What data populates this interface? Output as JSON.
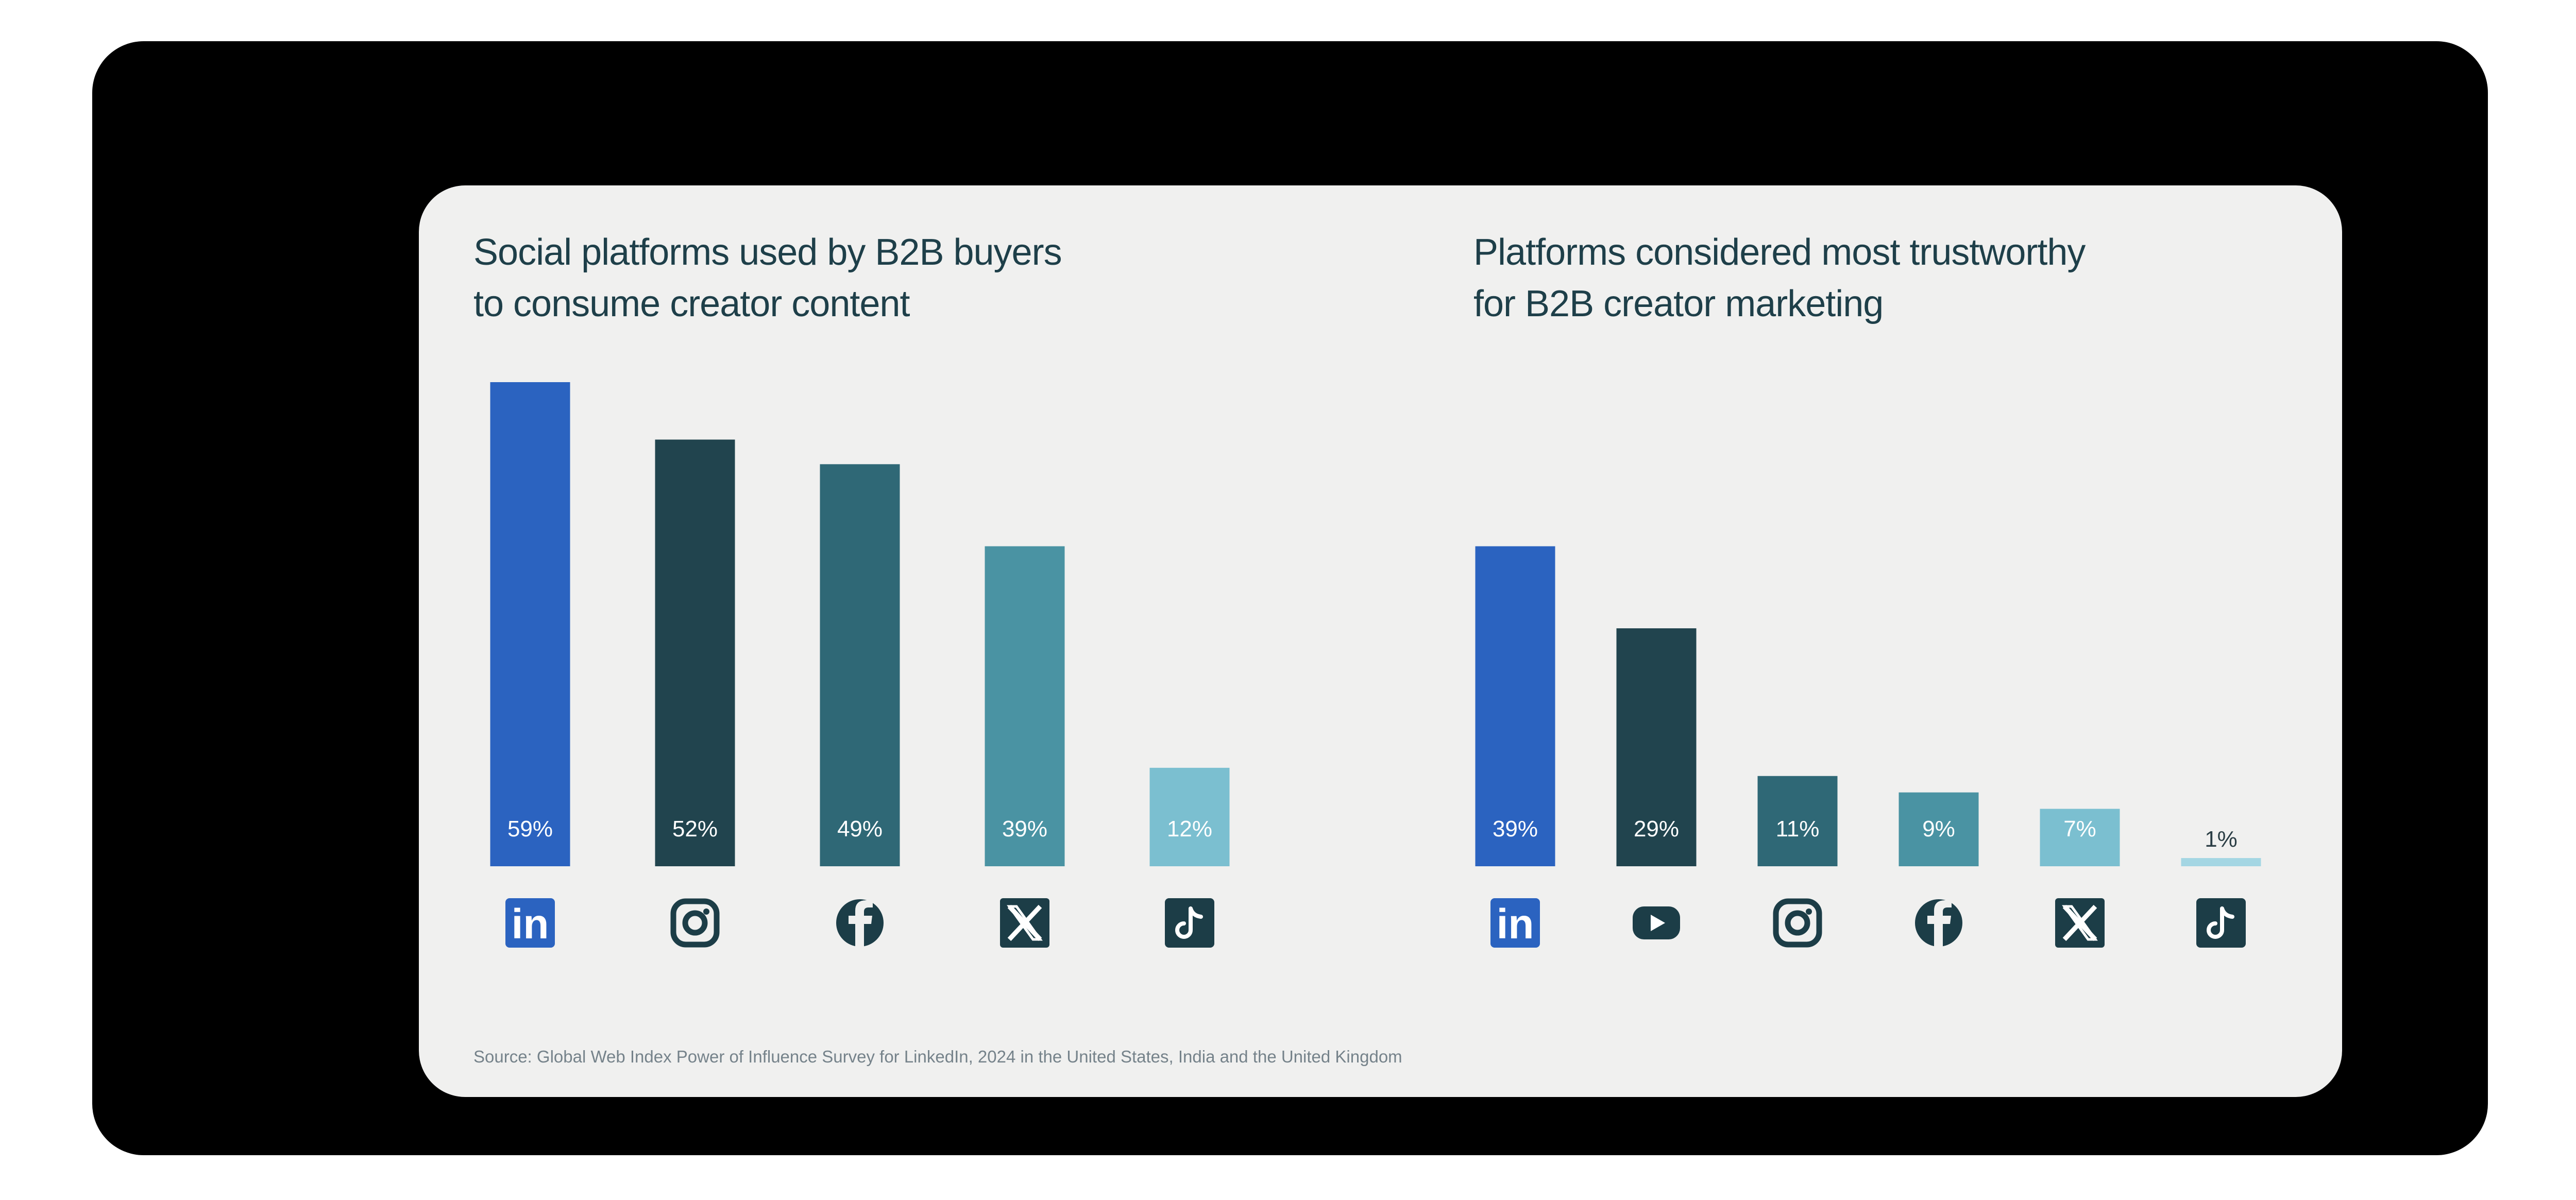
{
  "chart_data": [
    {
      "type": "bar",
      "title_lines": [
        "Social platforms used by B2B buyers",
        "to consume creator content"
      ],
      "categories": [
        "LinkedIn",
        "Instagram",
        "Facebook",
        "X",
        "TikTok"
      ],
      "value_labels": [
        "59%",
        "52%",
        "49%",
        "39%",
        "12%"
      ],
      "values": [
        59,
        52,
        49,
        39,
        12
      ],
      "colors": [
        "#2b63c0",
        "#21444e",
        "#2f6876",
        "#4a93a3",
        "#7bbfd0"
      ],
      "icons": [
        "linkedin-icon",
        "instagram-icon",
        "facebook-icon",
        "x-icon",
        "tiktok-icon"
      ],
      "ylim": [
        0,
        59
      ]
    },
    {
      "type": "bar",
      "title_lines": [
        "Platforms considered most trustworthy",
        "for B2B creator marketing"
      ],
      "categories": [
        "LinkedIn",
        "YouTube",
        "Instagram",
        "Facebook",
        "X",
        "TikTok"
      ],
      "value_labels": [
        "39%",
        "29%",
        "11%",
        "9%",
        "7%",
        "1%"
      ],
      "values": [
        39,
        29,
        11,
        9,
        7,
        1
      ],
      "colors": [
        "#2b63c0",
        "#21444e",
        "#2f6876",
        "#4a93a3",
        "#7bbfd0",
        "#a4d6e3"
      ],
      "icons": [
        "linkedin-icon",
        "youtube-icon",
        "instagram-icon",
        "facebook-icon",
        "x-icon",
        "tiktok-icon"
      ],
      "ylim": [
        0,
        59
      ]
    }
  ],
  "source": "Source: Global Web Index Power of Influence Survey for LinkedIn, 2024 in the United States, India and the United Kingdom"
}
